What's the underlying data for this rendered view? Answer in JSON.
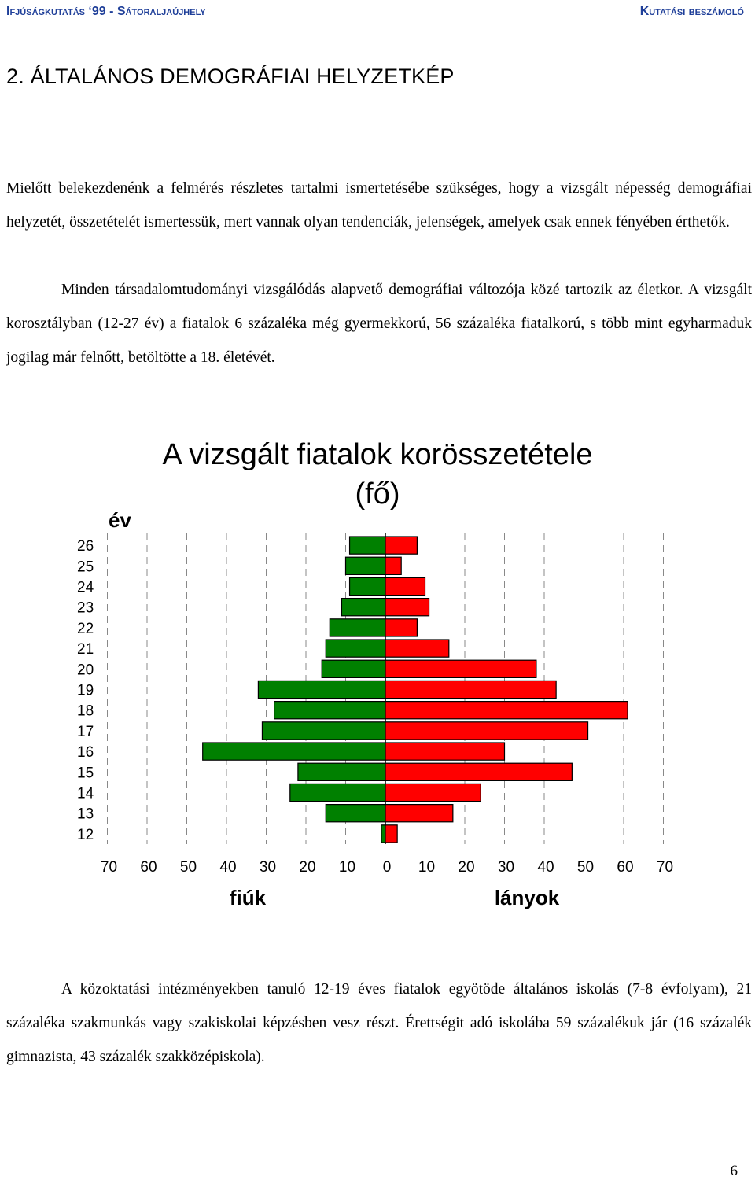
{
  "header": {
    "left": "Ifjúságkutatás ‘99 - Sátoraljaújhely",
    "right": "Kutatási beszámoló"
  },
  "heading": "2. ÁLTALÁNOS DEMOGRÁFIAI HELYZETKÉP",
  "paragraphs": {
    "p1": "Mielőtt belekezdenénk a felmérés részletes tartalmi ismertetésébe szükséges, hogy a vizsgált népesség demográfiai helyzetét, összetételét ismertessük, mert vannak olyan tendenciák, jelenségek, amelyek csak ennek fényében érthetők.",
    "p2": "Minden társadalomtudományi vizsgálódás alapvető demográfiai változója közé tartozik az életkor. A vizsgált korosztályban (12-27 év) a fiatalok 6 százaléka még gyermekkorú, 56 százaléka fiatalkorú, s több mint egyharmaduk jogilag már felnőtt, betöltötte a 18. életévét.",
    "p3": "A közoktatási intézményekben tanuló 12-19 éves fiatalok egyötöde általános iskolás (7-8 évfolyam), 21 százaléka szakmunkás vagy szakiskolai képzésben vesz részt. Érettségit adó iskolába 59 százalékuk jár (16 százalék gimnazista, 43 százalék szakközépiskola)."
  },
  "chart_data": {
    "type": "bar",
    "subtype": "population-pyramid",
    "title": "A vizsgált fiatalok korösszetétele",
    "subtitle": "(fő)",
    "ylabel": "év",
    "categories": [
      "26",
      "25",
      "24",
      "23",
      "22",
      "21",
      "20",
      "19",
      "18",
      "17",
      "16",
      "15",
      "14",
      "13",
      "12"
    ],
    "series": [
      {
        "name": "fiúk",
        "color": "#008000",
        "values": [
          9,
          10,
          9,
          11,
          14,
          15,
          16,
          32,
          28,
          31,
          46,
          22,
          24,
          15,
          1
        ]
      },
      {
        "name": "lányok",
        "color": "#ff0000",
        "values": [
          8,
          4,
          10,
          11,
          8,
          16,
          38,
          43,
          61,
          51,
          30,
          47,
          24,
          17,
          3
        ]
      }
    ],
    "x_ticks": [
      "70",
      "60",
      "50",
      "40",
      "30",
      "20",
      "10",
      "0",
      "10",
      "20",
      "30",
      "40",
      "50",
      "60",
      "70"
    ],
    "xlim": [
      -70,
      70
    ],
    "grid": "vertical dashed"
  },
  "page_number": "6"
}
